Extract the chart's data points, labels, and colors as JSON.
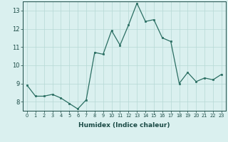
{
  "x": [
    0,
    1,
    2,
    3,
    4,
    5,
    6,
    7,
    8,
    9,
    10,
    11,
    12,
    13,
    14,
    15,
    16,
    17,
    18,
    19,
    20,
    21,
    22,
    23
  ],
  "y": [
    8.9,
    8.3,
    8.3,
    8.4,
    8.2,
    7.9,
    7.6,
    8.1,
    10.7,
    10.6,
    11.9,
    11.1,
    12.2,
    13.4,
    12.4,
    12.5,
    11.5,
    11.3,
    9.0,
    9.6,
    9.1,
    9.3,
    9.2,
    9.5
  ],
  "xlabel": "Humidex (Indice chaleur)",
  "ylim": [
    7.5,
    13.5
  ],
  "xlim": [
    -0.5,
    23.5
  ],
  "yticks": [
    8,
    9,
    10,
    11,
    12,
    13
  ],
  "xticks": [
    0,
    1,
    2,
    3,
    4,
    5,
    6,
    7,
    8,
    9,
    10,
    11,
    12,
    13,
    14,
    15,
    16,
    17,
    18,
    19,
    20,
    21,
    22,
    23
  ],
  "line_color": "#2a6e62",
  "marker_color": "#2a6e62",
  "bg_color": "#daf0ef",
  "grid_color": "#b5d8d5",
  "tick_color": "#1a4a45",
  "xlabel_fontsize": 6.5,
  "xtick_fontsize": 4.8,
  "ytick_fontsize": 6.0
}
